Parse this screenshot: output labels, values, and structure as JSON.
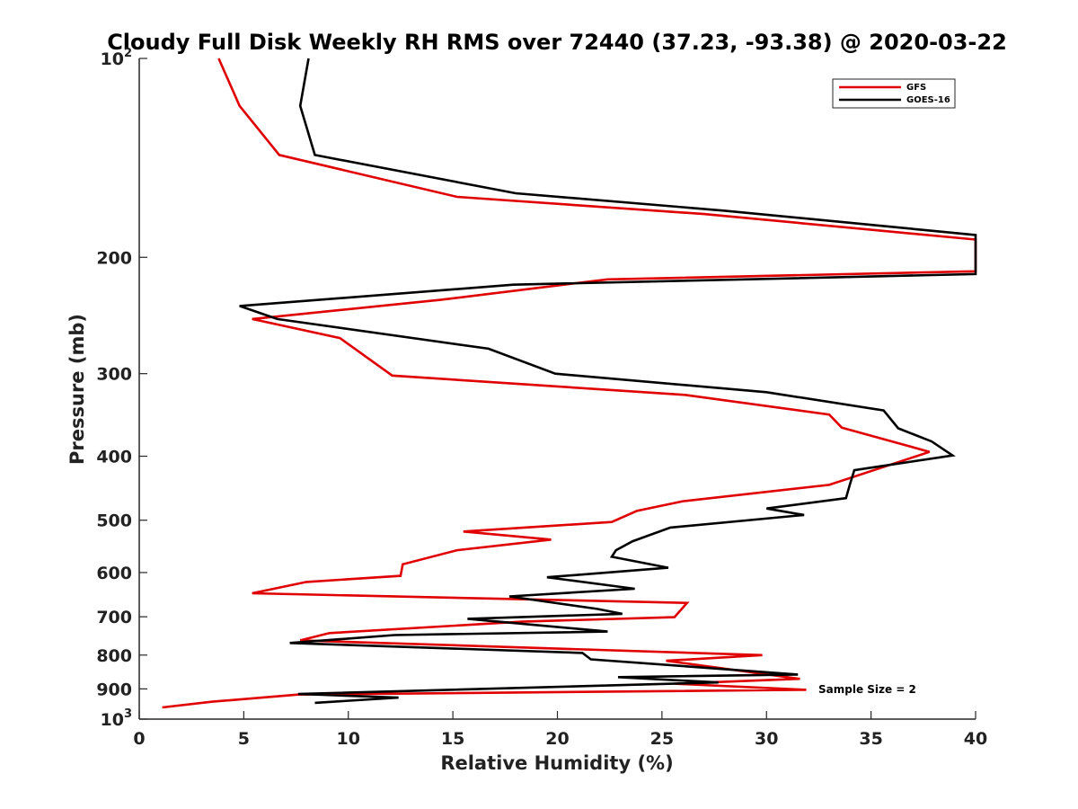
{
  "chart_data": {
    "type": "line",
    "title": "Cloudy Full Disk Weekly RH RMS over 72440 (37.23, -93.38) @ 2020-03-22",
    "xlabel": "Relative Humidity (%)",
    "ylabel": "Pressure (mb)",
    "xlim": [
      0,
      40
    ],
    "ylim": [
      100,
      1000
    ],
    "yscale": "log",
    "y_reversed": true,
    "grid": false,
    "legend_placement": "top-right",
    "x_ticks": [
      "0",
      "5",
      "10",
      "15",
      "20",
      "25",
      "30",
      "35",
      "40"
    ],
    "y_ticks": [
      {
        "value": 100,
        "base": "10",
        "exp": "2"
      },
      {
        "value": 200,
        "label": "200"
      },
      {
        "value": 300,
        "label": "300"
      },
      {
        "value": 400,
        "label": "400"
      },
      {
        "value": 500,
        "label": "500"
      },
      {
        "value": 600,
        "label": "600"
      },
      {
        "value": 700,
        "label": "700"
      },
      {
        "value": 800,
        "label": "800"
      },
      {
        "value": 900,
        "label": "900"
      },
      {
        "value": 1000,
        "base": "10",
        "exp": "3"
      }
    ],
    "annotation": "Sample Size = 2",
    "series": [
      {
        "name": "GFS",
        "color": "#e00000",
        "points": [
          [
            3.8,
            100
          ],
          [
            4.8,
            118
          ],
          [
            6.7,
            140
          ],
          [
            15.2,
            162
          ],
          [
            27.0,
            172
          ],
          [
            40.0,
            188
          ],
          [
            40.0,
            210
          ],
          [
            22.4,
            216
          ],
          [
            14.4,
            232
          ],
          [
            5.4,
            248
          ],
          [
            9.6,
            265
          ],
          [
            12.1,
            302
          ],
          [
            26.1,
            323
          ],
          [
            33.0,
            346
          ],
          [
            33.6,
            362
          ],
          [
            37.8,
            394
          ],
          [
            33.0,
            442
          ],
          [
            26.0,
            468
          ],
          [
            23.8,
            484
          ],
          [
            22.6,
            503
          ],
          [
            15.5,
            520
          ],
          [
            19.7,
            535
          ],
          [
            15.2,
            555
          ],
          [
            12.6,
            583
          ],
          [
            12.5,
            607
          ],
          [
            8.0,
            620
          ],
          [
            5.4,
            645
          ],
          [
            26.2,
            667
          ],
          [
            25.6,
            701
          ],
          [
            18.3,
            712
          ],
          [
            9.1,
            741
          ],
          [
            7.7,
            760
          ],
          [
            29.8,
            800
          ],
          [
            25.2,
            816
          ],
          [
            31.6,
            869
          ],
          [
            25.6,
            884
          ],
          [
            31.9,
            903
          ],
          [
            7.6,
            918
          ],
          [
            3.5,
            941
          ],
          [
            1.1,
            960
          ]
        ]
      },
      {
        "name": "GOES-16",
        "color": "#000000",
        "points": [
          [
            8.1,
            100
          ],
          [
            7.7,
            118
          ],
          [
            8.4,
            140
          ],
          [
            18.0,
            160
          ],
          [
            28.0,
            170
          ],
          [
            40.0,
            185
          ],
          [
            40.0,
            212
          ],
          [
            17.9,
            220
          ],
          [
            4.8,
            237
          ],
          [
            6.6,
            248
          ],
          [
            16.7,
            275
          ],
          [
            19.9,
            300
          ],
          [
            30.0,
            320
          ],
          [
            35.6,
            341
          ],
          [
            36.3,
            363
          ],
          [
            37.9,
            380
          ],
          [
            38.9,
            399
          ],
          [
            34.2,
            420
          ],
          [
            34.0,
            440
          ],
          [
            33.8,
            463
          ],
          [
            30.0,
            480
          ],
          [
            31.8,
            491
          ],
          [
            25.4,
            513
          ],
          [
            23.6,
            538
          ],
          [
            22.8,
            555
          ],
          [
            22.6,
            568
          ],
          [
            25.3,
            590
          ],
          [
            19.5,
            610
          ],
          [
            23.7,
            635
          ],
          [
            17.7,
            652
          ],
          [
            21.9,
            681
          ],
          [
            23.1,
            693
          ],
          [
            15.7,
            705
          ],
          [
            22.4,
            737
          ],
          [
            12.2,
            746
          ],
          [
            7.2,
            767
          ],
          [
            21.2,
            794
          ],
          [
            21.6,
            812
          ],
          [
            31.5,
            856
          ],
          [
            22.9,
            864
          ],
          [
            27.7,
            880
          ],
          [
            7.6,
            916
          ],
          [
            12.4,
            928
          ],
          [
            8.4,
            945
          ]
        ]
      }
    ]
  }
}
